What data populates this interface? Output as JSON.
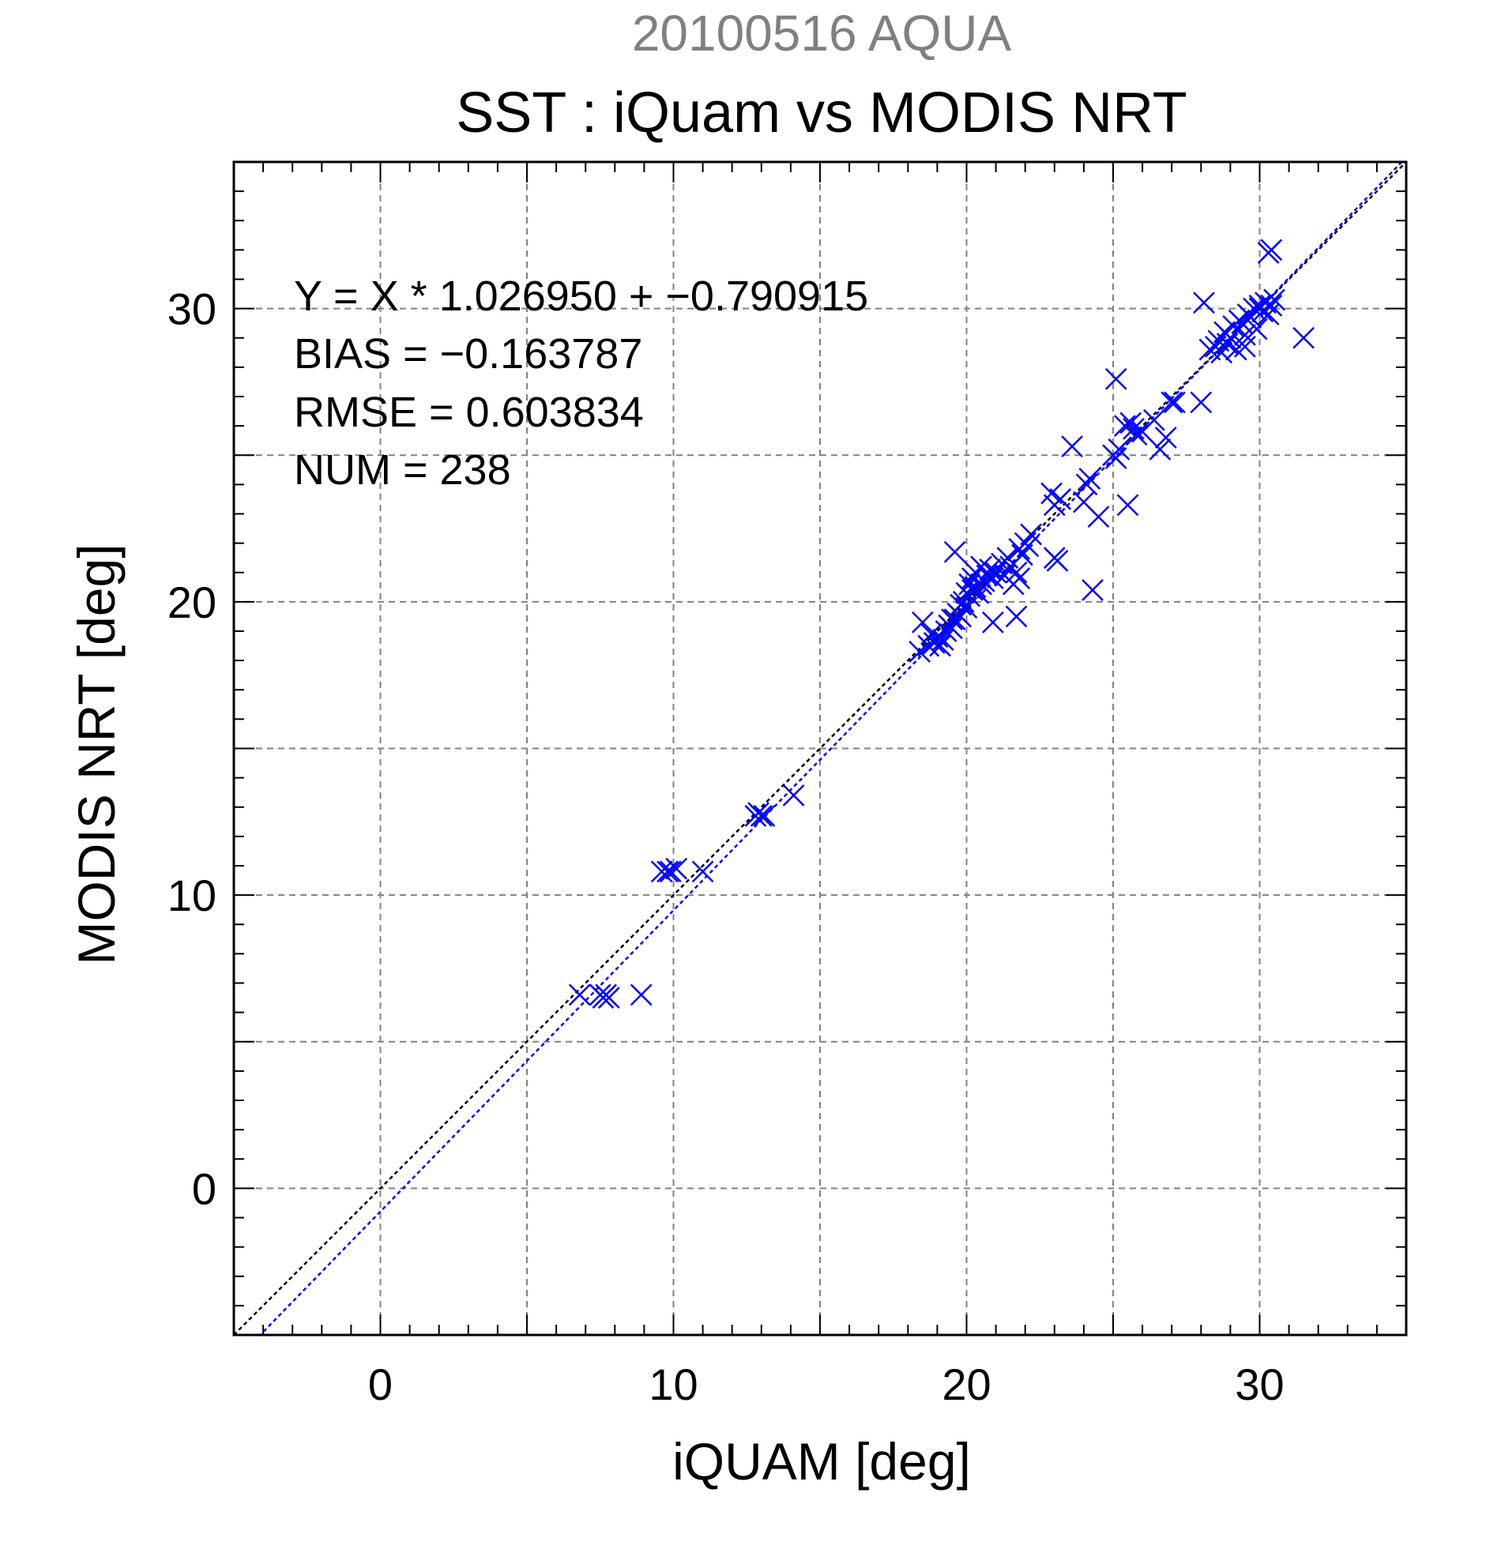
{
  "chart_data": {
    "type": "scatter",
    "subtitle": "20100516 AQUA",
    "title": "SST : iQuam vs MODIS NRT",
    "xlabel": "iQUAM [deg]",
    "ylabel": "MODIS NRT [deg]",
    "xlim": [
      -5,
      35
    ],
    "ylim": [
      -5,
      35
    ],
    "xticks": [
      0,
      10,
      20,
      30
    ],
    "yticks": [
      0,
      10,
      20,
      30
    ],
    "xtick_labels": [
      "0",
      "10",
      "20",
      "30"
    ],
    "ytick_labels": [
      "0",
      "10",
      "20",
      "30"
    ],
    "grid": true,
    "marker": "x",
    "colors": {
      "points": "#0000ff",
      "fit_line": "#0000ff",
      "one_to_one_line": "#000000",
      "subtitle": "#808080",
      "grid": "#808080"
    },
    "stats": {
      "equation": "Y = X * 1.026950 + −0.790915",
      "bias": "BIAS = −0.163787",
      "rmse": "RMSE = 0.603834",
      "num": "NUM = 238"
    },
    "fit": {
      "slope": 1.02695,
      "intercept": -0.790915
    },
    "series": [
      {
        "x": [
          6.8,
          7.5,
          7.6,
          7.7,
          7.8,
          8.9,
          9.6,
          9.8,
          9.9,
          10.1,
          11.0,
          12.8,
          12.9,
          13.0,
          13.1,
          14.1,
          18.4,
          18.5,
          18.7,
          18.8,
          18.9,
          19.0,
          19.1,
          19.2,
          19.3,
          19.4,
          19.5,
          19.6,
          19.6,
          19.7,
          19.8,
          19.8,
          19.9,
          20.0,
          20.0,
          20.1,
          20.1,
          20.2,
          20.2,
          20.3,
          20.3,
          20.4,
          20.5,
          20.5,
          20.6,
          20.7,
          20.8,
          20.9,
          21.0,
          21.2,
          21.3,
          21.4,
          21.5,
          21.6,
          21.7,
          21.8,
          21.9,
          22.0,
          22.1,
          22.2,
          19.5,
          20.9,
          21.7,
          21.8,
          24.3,
          22.9,
          23.0,
          23.1,
          23.2,
          23.6,
          24.0,
          24.1,
          24.2,
          24.5,
          25.0,
          25.1,
          25.2,
          25.4,
          25.6,
          25.8,
          26.0,
          26.4,
          26.6,
          26.8,
          27.0,
          27.1,
          28.0,
          25.5,
          25.7,
          25.1,
          23.0,
          28.1,
          28.3,
          28.5,
          28.6,
          28.7,
          28.8,
          28.9,
          29.0,
          29.1,
          29.2,
          29.3,
          29.4,
          29.5,
          29.6,
          29.7,
          29.8,
          29.9,
          30.0,
          30.1,
          30.2,
          30.3,
          30.4,
          30.5,
          29.5,
          30.0,
          31.5,
          30.3,
          30.4
        ],
        "y": [
          6.6,
          6.6,
          6.5,
          6.6,
          6.5,
          6.6,
          10.8,
          10.8,
          10.8,
          10.9,
          10.8,
          12.7,
          12.8,
          12.7,
          12.7,
          13.4,
          18.3,
          19.3,
          18.5,
          18.9,
          18.6,
          18.8,
          18.5,
          18.7,
          19.0,
          19.2,
          19.1,
          19.4,
          21.7,
          19.6,
          19.5,
          19.9,
          20.0,
          20.3,
          19.8,
          20.6,
          20.2,
          20.4,
          20.8,
          20.5,
          21.0,
          20.3,
          20.6,
          21.2,
          20.7,
          20.9,
          21.1,
          20.8,
          21.0,
          21.3,
          20.9,
          21.5,
          21.2,
          20.6,
          21.0,
          21.8,
          21.6,
          22.0,
          21.9,
          22.3,
          19.4,
          19.3,
          19.5,
          20.8,
          20.4,
          23.7,
          23.3,
          21.4,
          23.5,
          25.3,
          23.4,
          24.0,
          24.2,
          22.9,
          25.0,
          24.9,
          25.2,
          26.0,
          26.1,
          25.7,
          25.8,
          26.2,
          25.2,
          25.6,
          26.8,
          26.8,
          26.8,
          23.3,
          25.9,
          27.6,
          21.5,
          30.2,
          28.6,
          28.7,
          28.9,
          28.5,
          29.2,
          28.8,
          29.0,
          29.4,
          28.6,
          29.6,
          29.5,
          29.1,
          29.8,
          29.7,
          30.0,
          29.3,
          30.1,
          29.9,
          30.2,
          29.8,
          30.1,
          30.3,
          28.7,
          30.0,
          29.0,
          31.9,
          32.0
        ]
      }
    ]
  }
}
